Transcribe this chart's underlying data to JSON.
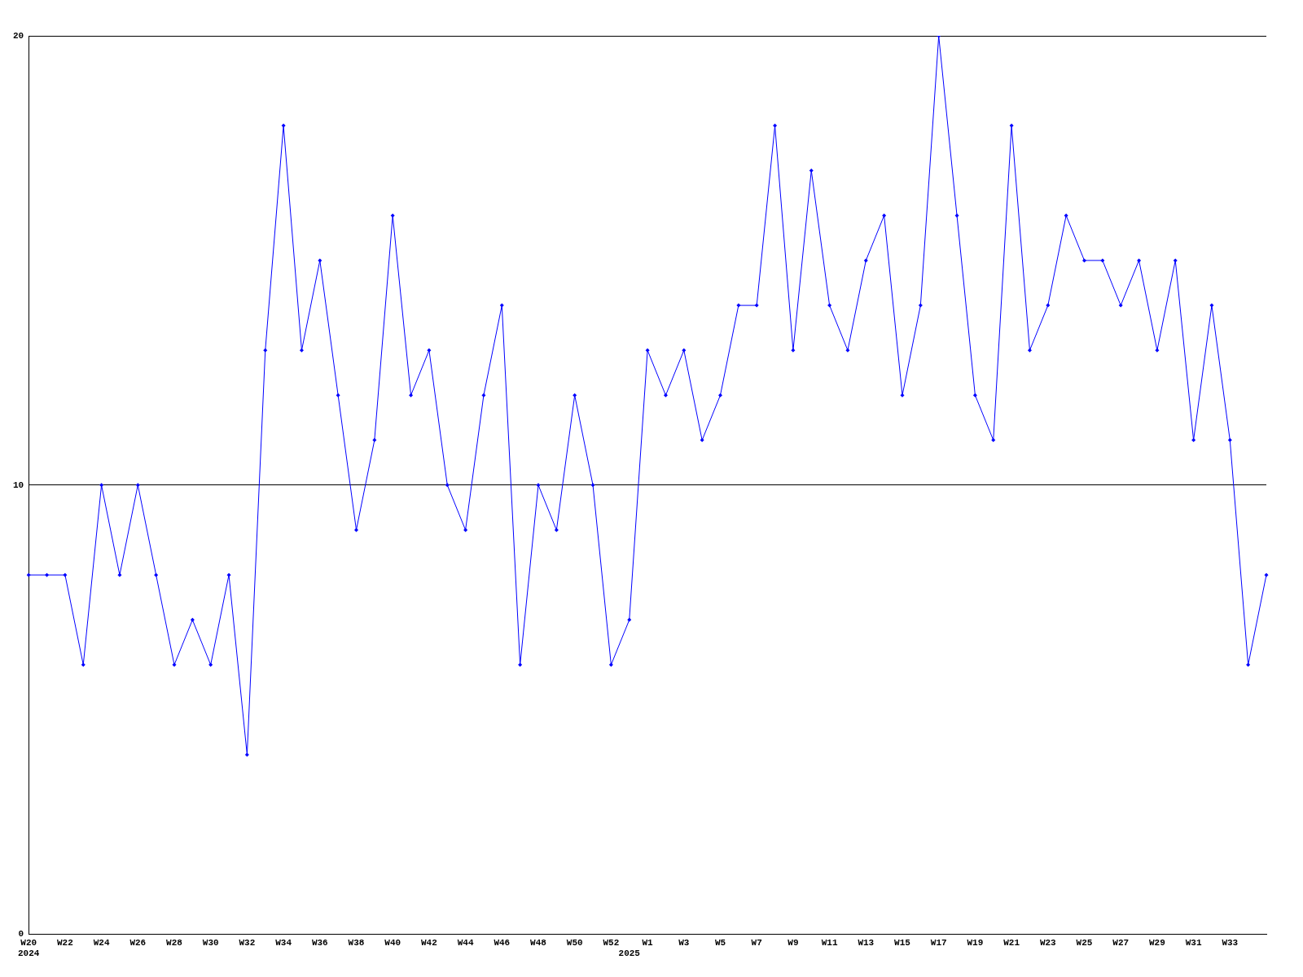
{
  "chart_data": {
    "type": "line",
    "categories": [
      "W20\n2024",
      null,
      "W22",
      null,
      "W24",
      null,
      "W26",
      null,
      "W28",
      null,
      "W30",
      null,
      "W32",
      null,
      "W34",
      null,
      "W36",
      null,
      "W38",
      null,
      "W40",
      null,
      "W42",
      null,
      "W44",
      null,
      "W46",
      null,
      "W48",
      null,
      "W50",
      null,
      "W52",
      "\n2025",
      "W1",
      null,
      "W3",
      null,
      "W5",
      null,
      "W7",
      null,
      "W9",
      null,
      "W11",
      null,
      "W13",
      null,
      "W15",
      null,
      "W17",
      null,
      "W19",
      null,
      "W21",
      null,
      "W23",
      null,
      "W25",
      null,
      "W27",
      null,
      "W29",
      null,
      "W31",
      null,
      "W33",
      null,
      null
    ],
    "series": [
      {
        "color": "#0000ff",
        "values": [
          8,
          8,
          8,
          6,
          10,
          8,
          10,
          8,
          6,
          7,
          6,
          8,
          4,
          13,
          18,
          13,
          15,
          12,
          9,
          11,
          16,
          12,
          13,
          10,
          9,
          12,
          14,
          6,
          10,
          9,
          12,
          10,
          6,
          7,
          13,
          12,
          13,
          11,
          12,
          14,
          14,
          18,
          13,
          17,
          14,
          13,
          15,
          16,
          12,
          14,
          20,
          16,
          12,
          11,
          18,
          13,
          14,
          16,
          15,
          15,
          14,
          15,
          13,
          15,
          11,
          14,
          11,
          6,
          8
        ]
      }
    ],
    "ylim": [
      0,
      20
    ],
    "yticks": [
      0,
      10,
      20
    ],
    "grid": "y",
    "marker": "diamond",
    "line_style": "solid"
  }
}
